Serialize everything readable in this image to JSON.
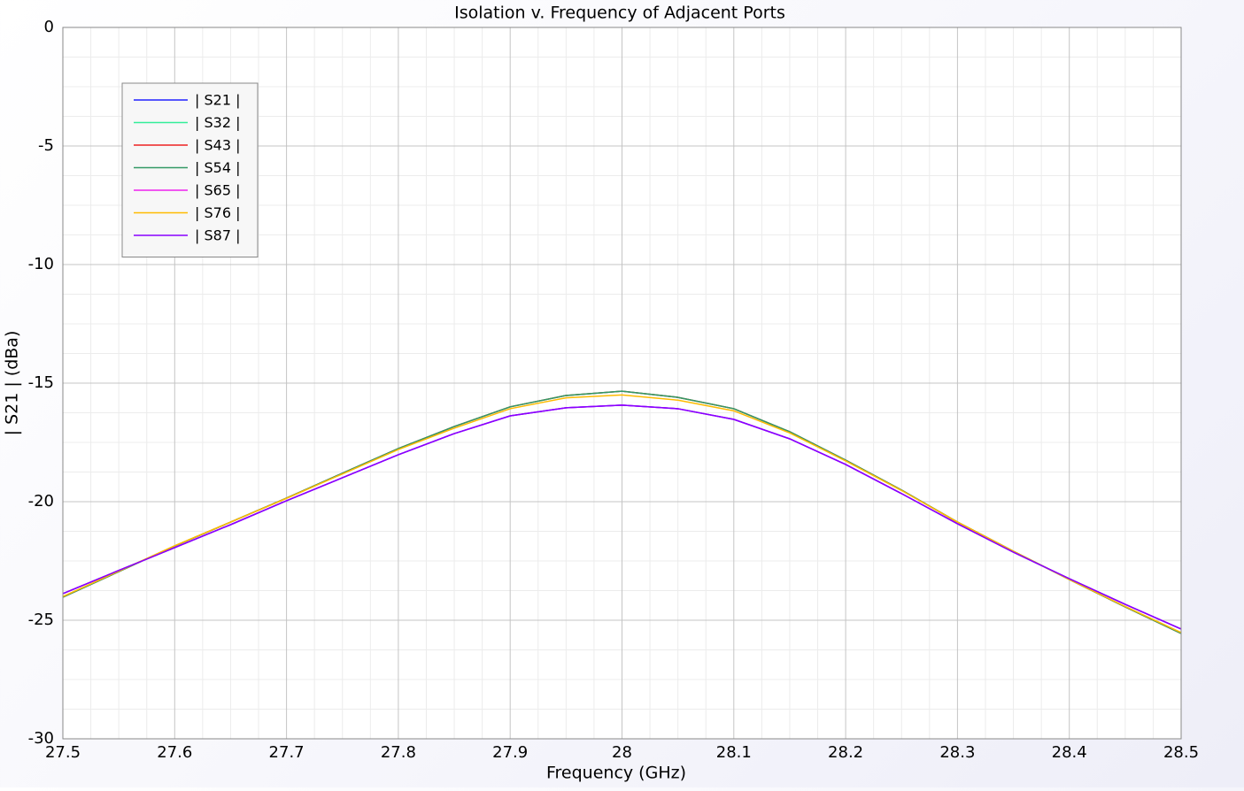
{
  "chart_data": {
    "type": "line",
    "title": "Isolation v. Frequency of Adjacent Ports",
    "x_label": "Frequency (GHz)",
    "y_label": "| S21 | (dBa)",
    "x": [
      27.5,
      27.55,
      27.6,
      27.65,
      27.7,
      27.75,
      27.8,
      27.85,
      27.9,
      27.95,
      28.0,
      28.05,
      28.1,
      28.15,
      28.2,
      28.25,
      28.3,
      28.35,
      28.4,
      28.45,
      28.5
    ],
    "series": [
      {
        "name": "| S21 |",
        "color": "#2020ff",
        "values": [
          -23.88,
          -22.9,
          -21.94,
          -20.97,
          -19.96,
          -18.99,
          -18.02,
          -17.13,
          -16.38,
          -16.04,
          -15.93,
          -16.08,
          -16.53,
          -17.35,
          -18.43,
          -19.66,
          -20.93,
          -22.13,
          -23.25,
          -24.33,
          -25.37
        ]
      },
      {
        "name": "| S32 |",
        "color": "#33ee99",
        "values": [
          -24.03,
          -22.95,
          -21.87,
          -20.86,
          -19.85,
          -18.8,
          -17.76,
          -16.83,
          -16.0,
          -15.52,
          -15.34,
          -15.6,
          -16.08,
          -17.05,
          -18.25,
          -19.51,
          -20.86,
          -22.09,
          -23.28,
          -24.44,
          -25.56
        ]
      },
      {
        "name": "| S43 |",
        "color": "#ee2222",
        "values": [
          -24.03,
          -22.95,
          -21.87,
          -20.86,
          -19.85,
          -18.8,
          -17.76,
          -16.83,
          -16.0,
          -15.52,
          -15.34,
          -15.6,
          -16.08,
          -17.05,
          -18.25,
          -19.51,
          -20.86,
          -22.09,
          -23.28,
          -24.44,
          -25.56
        ]
      },
      {
        "name": "| S54 |",
        "color": "#339966",
        "values": [
          -24.03,
          -22.95,
          -21.87,
          -20.86,
          -19.85,
          -18.8,
          -17.76,
          -16.83,
          -16.0,
          -15.52,
          -15.34,
          -15.6,
          -16.08,
          -17.05,
          -18.25,
          -19.51,
          -20.86,
          -22.09,
          -23.28,
          -24.44,
          -25.56
        ]
      },
      {
        "name": "| S65 |",
        "color": "#ee22ee",
        "values": [
          -23.88,
          -22.9,
          -21.94,
          -20.97,
          -19.96,
          -18.99,
          -18.02,
          -17.13,
          -16.38,
          -16.04,
          -15.93,
          -16.08,
          -16.53,
          -17.35,
          -18.43,
          -19.66,
          -20.93,
          -22.13,
          -23.25,
          -24.33,
          -25.37
        ]
      },
      {
        "name": "| S76 |",
        "color": "#ffbb00",
        "values": [
          -24.0,
          -22.93,
          -21.86,
          -20.86,
          -19.86,
          -18.83,
          -17.8,
          -16.9,
          -16.08,
          -15.62,
          -15.5,
          -15.72,
          -16.17,
          -17.1,
          -18.28,
          -19.53,
          -20.86,
          -22.09,
          -23.28,
          -24.42,
          -25.52
        ]
      },
      {
        "name": "| S87 |",
        "color": "#8800ff",
        "values": [
          -23.88,
          -22.9,
          -21.94,
          -20.97,
          -19.96,
          -18.99,
          -18.02,
          -17.13,
          -16.38,
          -16.04,
          -15.93,
          -16.08,
          -16.53,
          -17.35,
          -18.43,
          -19.66,
          -20.93,
          -22.13,
          -23.25,
          -24.33,
          -25.37
        ]
      }
    ],
    "xlim": [
      27.5,
      28.5
    ],
    "ylim": [
      -30,
      0
    ],
    "xticks": [
      27.5,
      27.6,
      27.7,
      27.8,
      27.9,
      28,
      28.1,
      28.2,
      28.3,
      28.4,
      28.5
    ],
    "yticks": [
      -30,
      -25,
      -20,
      -15,
      -10,
      -5,
      0
    ],
    "grid": true,
    "minor_grid": true,
    "legend": "upper left"
  }
}
